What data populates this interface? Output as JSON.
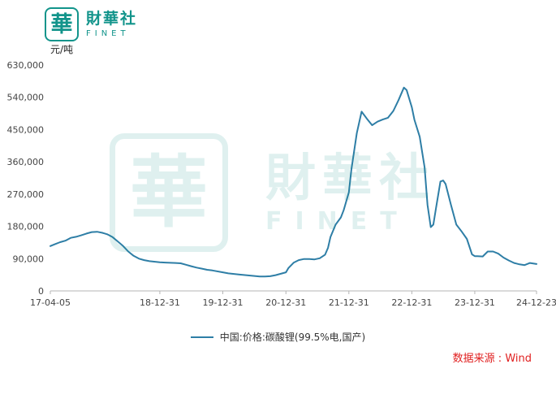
{
  "brand": {
    "seal_char": "華",
    "name": "財華社",
    "subname": "FINET",
    "color": "#12948b"
  },
  "source": {
    "text": "数据来源 : Wind",
    "color": "#e01f1f"
  },
  "chart_data": {
    "type": "line",
    "title": "",
    "xlabel": "",
    "ylabel": "元/吨",
    "unit_label": "元/吨",
    "ylim": [
      0,
      630000
    ],
    "grid": false,
    "legend_position": "bottom",
    "axis_color": "#b5b5b5",
    "y_ticks": [
      {
        "value": 0,
        "label": "0"
      },
      {
        "value": 90000,
        "label": "90,000"
      },
      {
        "value": 180000,
        "label": "180,000"
      },
      {
        "value": 270000,
        "label": "270,000"
      },
      {
        "value": 360000,
        "label": "360,000"
      },
      {
        "value": 450000,
        "label": "450,000"
      },
      {
        "value": 540000,
        "label": "540,000"
      },
      {
        "value": 630000,
        "label": "630,000"
      }
    ],
    "x_ticks": [
      {
        "date": "2017-04-05",
        "label": "17-04-05"
      },
      {
        "date": "2018-12-31",
        "label": "18-12-31"
      },
      {
        "date": "2019-12-31",
        "label": "19-12-31"
      },
      {
        "date": "2020-12-31",
        "label": "20-12-31"
      },
      {
        "date": "2021-12-31",
        "label": "21-12-31"
      },
      {
        "date": "2022-12-31",
        "label": "22-12-31"
      },
      {
        "date": "2023-12-31",
        "label": "23-12-31"
      },
      {
        "date": "2024-12-23",
        "label": "24-12-23"
      }
    ],
    "series": [
      {
        "name": "中国:价格:碳酸锂(99.5%电,国产)",
        "color": "#2e7ea6",
        "points": [
          [
            "2017-04-05",
            125000
          ],
          [
            "2017-05-01",
            130000
          ],
          [
            "2017-06-01",
            136000
          ],
          [
            "2017-07-01",
            140000
          ],
          [
            "2017-08-01",
            148000
          ],
          [
            "2017-09-01",
            151000
          ],
          [
            "2017-10-01",
            155000
          ],
          [
            "2017-11-01",
            160000
          ],
          [
            "2017-12-01",
            164000
          ],
          [
            "2018-01-01",
            165000
          ],
          [
            "2018-02-01",
            162000
          ],
          [
            "2018-03-01",
            158000
          ],
          [
            "2018-04-01",
            150000
          ],
          [
            "2018-05-01",
            138000
          ],
          [
            "2018-06-01",
            125000
          ],
          [
            "2018-07-01",
            110000
          ],
          [
            "2018-08-01",
            98000
          ],
          [
            "2018-09-01",
            90000
          ],
          [
            "2018-10-01",
            86000
          ],
          [
            "2018-11-01",
            83000
          ],
          [
            "2018-12-31",
            80000
          ],
          [
            "2019-02-01",
            79000
          ],
          [
            "2019-04-01",
            78000
          ],
          [
            "2019-05-01",
            77000
          ],
          [
            "2019-06-01",
            73000
          ],
          [
            "2019-07-01",
            69000
          ],
          [
            "2019-08-01",
            65000
          ],
          [
            "2019-09-01",
            62000
          ],
          [
            "2019-10-01",
            59000
          ],
          [
            "2019-11-01",
            57000
          ],
          [
            "2019-12-31",
            52000
          ],
          [
            "2020-02-01",
            49000
          ],
          [
            "2020-04-01",
            46000
          ],
          [
            "2020-06-01",
            43000
          ],
          [
            "2020-08-01",
            40000
          ],
          [
            "2020-09-01",
            40000
          ],
          [
            "2020-10-01",
            41000
          ],
          [
            "2020-11-01",
            44000
          ],
          [
            "2020-12-31",
            52000
          ],
          [
            "2021-01-15",
            64000
          ],
          [
            "2021-02-15",
            79000
          ],
          [
            "2021-03-15",
            86000
          ],
          [
            "2021-04-15",
            89000
          ],
          [
            "2021-05-15",
            89000
          ],
          [
            "2021-06-15",
            88000
          ],
          [
            "2021-07-15",
            91000
          ],
          [
            "2021-08-15",
            101000
          ],
          [
            "2021-09-01",
            120000
          ],
          [
            "2021-09-15",
            150000
          ],
          [
            "2021-10-15",
            185000
          ],
          [
            "2021-11-15",
            205000
          ],
          [
            "2021-12-01",
            225000
          ],
          [
            "2021-12-31",
            275000
          ],
          [
            "2022-01-15",
            340000
          ],
          [
            "2022-02-15",
            440000
          ],
          [
            "2022-03-15",
            500000
          ],
          [
            "2022-04-15",
            480000
          ],
          [
            "2022-05-15",
            462000
          ],
          [
            "2022-06-15",
            472000
          ],
          [
            "2022-07-15",
            478000
          ],
          [
            "2022-08-15",
            483000
          ],
          [
            "2022-09-15",
            502000
          ],
          [
            "2022-10-15",
            532000
          ],
          [
            "2022-11-15",
            567000
          ],
          [
            "2022-12-01",
            560000
          ],
          [
            "2022-12-31",
            512000
          ],
          [
            "2023-01-15",
            477000
          ],
          [
            "2023-02-15",
            430000
          ],
          [
            "2023-03-15",
            345000
          ],
          [
            "2023-04-01",
            240000
          ],
          [
            "2023-04-20",
            178000
          ],
          [
            "2023-05-05",
            185000
          ],
          [
            "2023-05-20",
            230000
          ],
          [
            "2023-06-15",
            305000
          ],
          [
            "2023-07-01",
            308000
          ],
          [
            "2023-07-15",
            298000
          ],
          [
            "2023-08-15",
            240000
          ],
          [
            "2023-09-15",
            185000
          ],
          [
            "2023-10-15",
            166000
          ],
          [
            "2023-11-15",
            145000
          ],
          [
            "2023-12-15",
            102000
          ],
          [
            "2023-12-31",
            97000
          ],
          [
            "2024-01-15",
            97000
          ],
          [
            "2024-02-15",
            96000
          ],
          [
            "2024-03-15",
            110000
          ],
          [
            "2024-04-15",
            110000
          ],
          [
            "2024-05-15",
            104000
          ],
          [
            "2024-06-15",
            93000
          ],
          [
            "2024-07-15",
            85000
          ],
          [
            "2024-08-15",
            78000
          ],
          [
            "2024-09-15",
            74000
          ],
          [
            "2024-10-15",
            72000
          ],
          [
            "2024-11-15",
            78000
          ],
          [
            "2024-12-23",
            75000
          ]
        ]
      }
    ]
  }
}
